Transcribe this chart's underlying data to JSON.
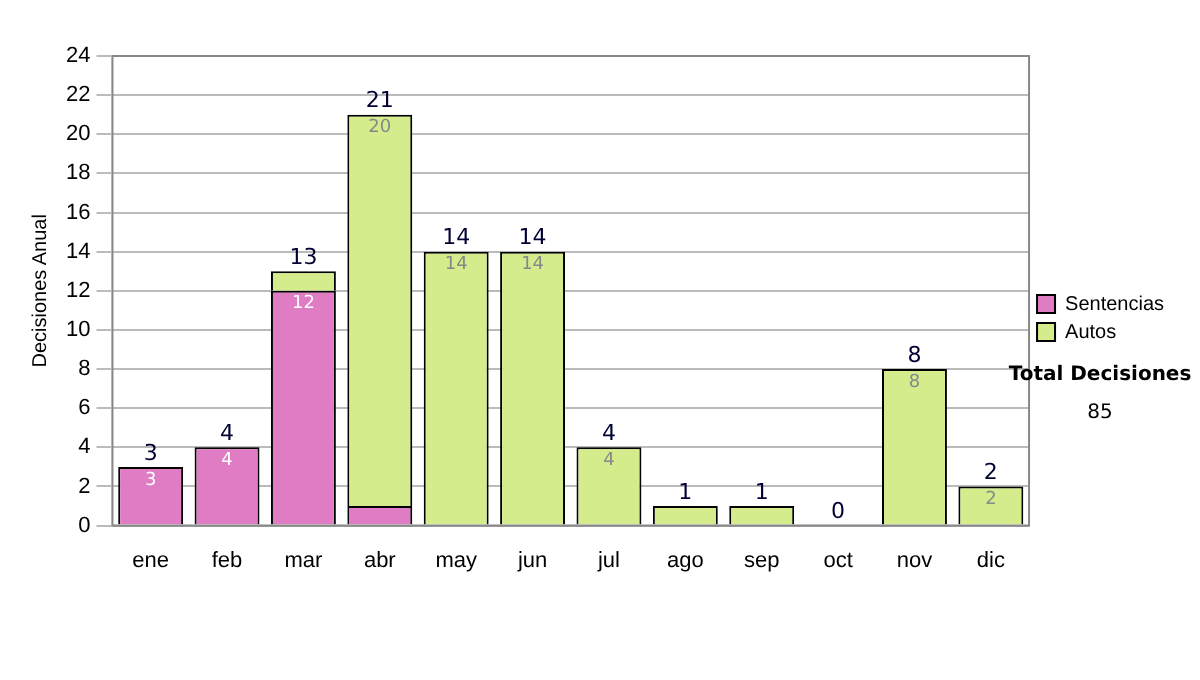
{
  "chart_data": {
    "type": "bar",
    "stacked": true,
    "ylabel": "Decisiones Anual",
    "categories": [
      "ene",
      "feb",
      "mar",
      "abr",
      "may",
      "jun",
      "jul",
      "ago",
      "sep",
      "oct",
      "nov",
      "dic"
    ],
    "series": [
      {
        "name": "Sentencias",
        "color": "#e07cc4",
        "values": [
          3,
          4,
          12,
          1,
          0,
          0,
          0,
          0,
          0,
          0,
          0,
          0
        ],
        "value_labels": [
          "3",
          "4",
          "12",
          null,
          null,
          null,
          null,
          null,
          null,
          null,
          null,
          null
        ]
      },
      {
        "name": "Autos",
        "color": "#d4ec8c",
        "values": [
          0,
          0,
          1,
          20,
          14,
          14,
          4,
          1,
          1,
          0,
          8,
          2
        ],
        "value_labels": [
          null,
          null,
          null,
          "20",
          "14",
          "14",
          "4",
          null,
          null,
          null,
          "8",
          "2"
        ]
      }
    ],
    "totals": [
      "3",
      "4",
      "13",
      "21",
      "14",
      "14",
      "4",
      "1",
      "1",
      "0",
      "8",
      "2"
    ],
    "ylim": [
      0,
      24
    ],
    "yticks": [
      0,
      2,
      4,
      6,
      8,
      10,
      12,
      14,
      16,
      18,
      20,
      22,
      24
    ],
    "grid": "y",
    "legend": "right",
    "annotations": [
      "Total Decisiones",
      "85"
    ]
  }
}
